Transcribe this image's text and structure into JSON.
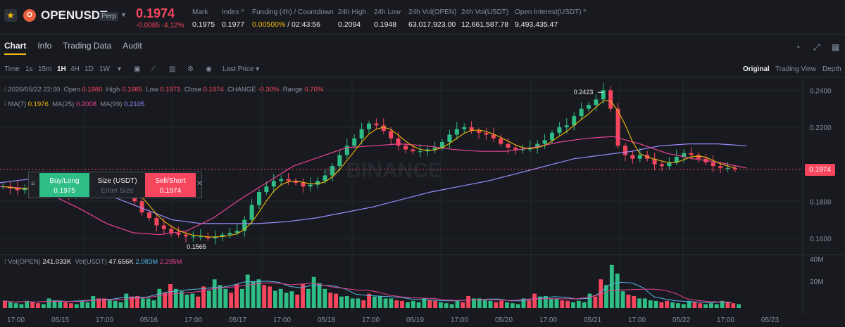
{
  "header": {
    "symbol": "OPENUSDT",
    "contract": "Perp",
    "last_price": "0.1974",
    "change": "-0.0085 -4.12%",
    "stats": [
      {
        "label": "Mark",
        "value": "0.1975"
      },
      {
        "label": "Index",
        "value": "0.1977"
      },
      {
        "label": "Funding (4h) / Countdown",
        "value": "0.00500% / 02:43:56",
        "funding": "0.00500%",
        "countdown": "/ 02:43:56"
      },
      {
        "label": "24h High",
        "value": "0.2094"
      },
      {
        "label": "24h Low",
        "value": "0.1948"
      },
      {
        "label": "24h Vol(OPEN)",
        "value": "63,017,923.00"
      },
      {
        "label": "24h Vol(USDT)",
        "value": "12,661,587.78"
      },
      {
        "label": "Open Interest(USDT)",
        "value": "9,493,435.47"
      }
    ]
  },
  "tabs": [
    "Chart",
    "Info",
    "Trading Data",
    "Audit"
  ],
  "toolbar": {
    "intervals": [
      "Time",
      "1s",
      "15m",
      "1H",
      "4H",
      "1D",
      "1W"
    ],
    "selected": "1H",
    "price_type": "Last Price",
    "views": [
      "Original",
      "Trading View",
      "Depth"
    ],
    "selected_view": "Original"
  },
  "ohlc": {
    "date": "2026/05/22 22:00",
    "open_label": "Open",
    "open": "0.1980",
    "high_label": "High",
    "high": "0.1985",
    "low_label": "Low",
    "low": "0.1971",
    "close_label": "Close",
    "close": "0.1974",
    "change_label": "CHANGE",
    "change": "-0.30%",
    "range_label": "Range",
    "range": "0.70%"
  },
  "ma": {
    "ma7_label": "MA(7)",
    "ma7": "0.1976",
    "ma25_label": "MA(25)",
    "ma25": "0.2008",
    "ma99_label": "MA(99)",
    "ma99": "0.2105"
  },
  "volume": {
    "label1": "Vol(OPEN)",
    "value1": "241.033K",
    "label2": "Vol(USDT)",
    "value2": "47.656K",
    "ma_a": "2.083M",
    "ma_b": "2.295M"
  },
  "order_panel": {
    "buy_label": "Buy/Long",
    "buy_price": "0.1975",
    "size_label": "Size (USDT)",
    "size_placeholder": "Enter Size",
    "sell_label": "Sell/Short",
    "sell_price": "0.1974"
  },
  "chart_data": {
    "type": "candlestick",
    "ylim": [
      0.152,
      0.2458
    ],
    "y_ticks": [
      "0.2400",
      "0.2200",
      "0.1800",
      "0.1600"
    ],
    "vol_ticks": [
      "40M",
      "20M"
    ],
    "x_ticks": [
      "17:00",
      "05/15",
      "17:00",
      "05/16",
      "17:00",
      "05/17",
      "17:00",
      "05/18",
      "17:00",
      "05/19",
      "17:00",
      "05/20",
      "17:00",
      "05/21",
      "17:00",
      "05/22",
      "17:00",
      "05/23"
    ],
    "high_marker": "0.2423",
    "low_marker": "0.1565",
    "current_price": "0.1974",
    "close_path": [
      0.188,
      0.187,
      0.186,
      0.187,
      0.188,
      0.189,
      0.188,
      0.186,
      0.186,
      0.184,
      0.185,
      0.186,
      0.187,
      0.188,
      0.189,
      0.188,
      0.189,
      0.186,
      0.18,
      0.174,
      0.171,
      0.167,
      0.165,
      0.163,
      0.162,
      0.161,
      0.161,
      0.161,
      0.16,
      0.161,
      0.162,
      0.163,
      0.164,
      0.17,
      0.178,
      0.185,
      0.188,
      0.191,
      0.192,
      0.191,
      0.19,
      0.188,
      0.189,
      0.191,
      0.194,
      0.199,
      0.205,
      0.21,
      0.214,
      0.219,
      0.222,
      0.221,
      0.218,
      0.214,
      0.21,
      0.208,
      0.207,
      0.207,
      0.208,
      0.209,
      0.212,
      0.216,
      0.219,
      0.22,
      0.218,
      0.217,
      0.216,
      0.214,
      0.211,
      0.209,
      0.208,
      0.208,
      0.209,
      0.211,
      0.213,
      0.217,
      0.22,
      0.221,
      0.226,
      0.23,
      0.232,
      0.235,
      0.24,
      0.23,
      0.21,
      0.205,
      0.203,
      0.205,
      0.203,
      0.2,
      0.199,
      0.201,
      0.204,
      0.206,
      0.205,
      0.203,
      0.201,
      0.199,
      0.198,
      0.198,
      0.1974
    ],
    "ma99": [
      0.19,
      0.192,
      0.19,
      0.186,
      0.182,
      0.176,
      0.17,
      0.168,
      0.168,
      0.168,
      0.169,
      0.171,
      0.174,
      0.177,
      0.181,
      0.185,
      0.188,
      0.191,
      0.195,
      0.199,
      0.203,
      0.205,
      0.207,
      0.21,
      0.211,
      0.211,
      0.21
    ],
    "ma25": [
      0.188,
      0.187,
      0.183,
      0.176,
      0.168,
      0.163,
      0.162,
      0.164,
      0.171,
      0.181,
      0.19,
      0.199,
      0.204,
      0.209,
      0.21,
      0.211,
      0.21,
      0.208,
      0.207,
      0.207,
      0.209,
      0.212,
      0.214,
      0.215,
      0.211,
      0.206,
      0.203,
      0.201,
      0.198
    ],
    "vol_pattern": [
      3,
      2,
      3,
      2,
      4,
      3,
      2,
      3,
      5,
      4,
      3,
      6,
      5,
      4,
      8,
      10,
      7,
      6,
      9,
      12,
      8,
      10,
      14,
      12,
      9,
      8,
      7,
      10,
      13,
      8,
      6,
      5,
      4,
      6,
      5,
      4,
      3,
      3,
      4,
      3,
      2,
      3,
      5,
      4,
      3,
      3,
      2,
      4,
      6,
      5,
      4,
      3,
      3,
      6,
      12,
      18,
      7,
      5,
      4,
      3,
      3,
      2,
      3,
      2,
      2,
      3,
      2
    ]
  }
}
